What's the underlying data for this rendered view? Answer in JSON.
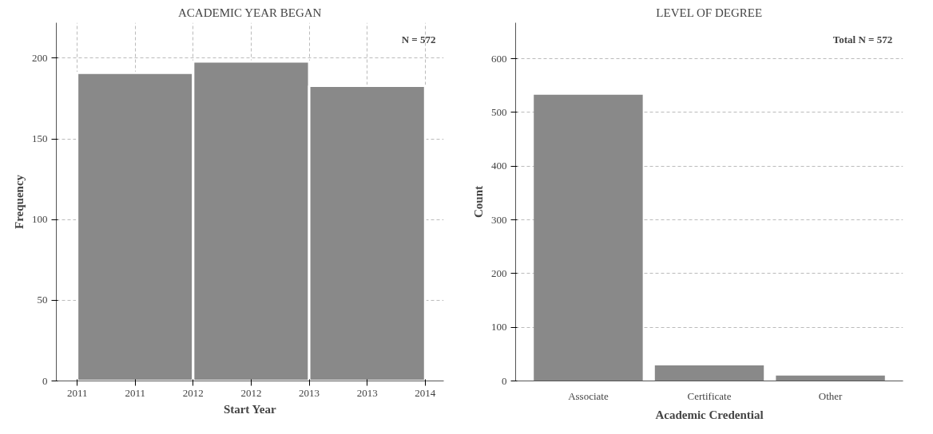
{
  "chart_data": [
    {
      "type": "histogram",
      "title": "ACADEMIC YEAR BEGAN",
      "xlabel": "Start Year",
      "ylabel": "Frequency",
      "bins": [
        2010.5,
        2011.5,
        2012.5,
        2013.5
      ],
      "values": [
        191,
        198,
        183
      ],
      "color": "#898989",
      "xlim": [
        2010.32,
        2013.66
      ],
      "ylim": [
        0,
        222
      ],
      "xticks": [
        {
          "value": 2010.5,
          "label": "2011"
        },
        {
          "value": 2011,
          "label": "2011"
        },
        {
          "value": 2011.5,
          "label": "2012"
        },
        {
          "value": 2012,
          "label": "2012"
        },
        {
          "value": 2012.5,
          "label": "2013"
        },
        {
          "value": 2013,
          "label": "2013"
        },
        {
          "value": 2013.5,
          "label": "2014"
        }
      ],
      "yticks": [
        0,
        50,
        100,
        150,
        200
      ],
      "grid": true,
      "annotations": [
        "N = 572"
      ]
    },
    {
      "type": "bar",
      "title": "LEVEL OF DEGREE",
      "xlabel": "Academic Credential",
      "ylabel": "Count",
      "categories": [
        "Associate",
        "Certificate",
        "Other"
      ],
      "values": [
        533,
        29,
        10
      ],
      "color": "#898989",
      "ylim": [
        0,
        667
      ],
      "yticks": [
        0,
        100,
        200,
        300,
        400,
        500,
        600
      ],
      "grid": "y",
      "annotations": [
        "Total N =  572"
      ]
    }
  ]
}
